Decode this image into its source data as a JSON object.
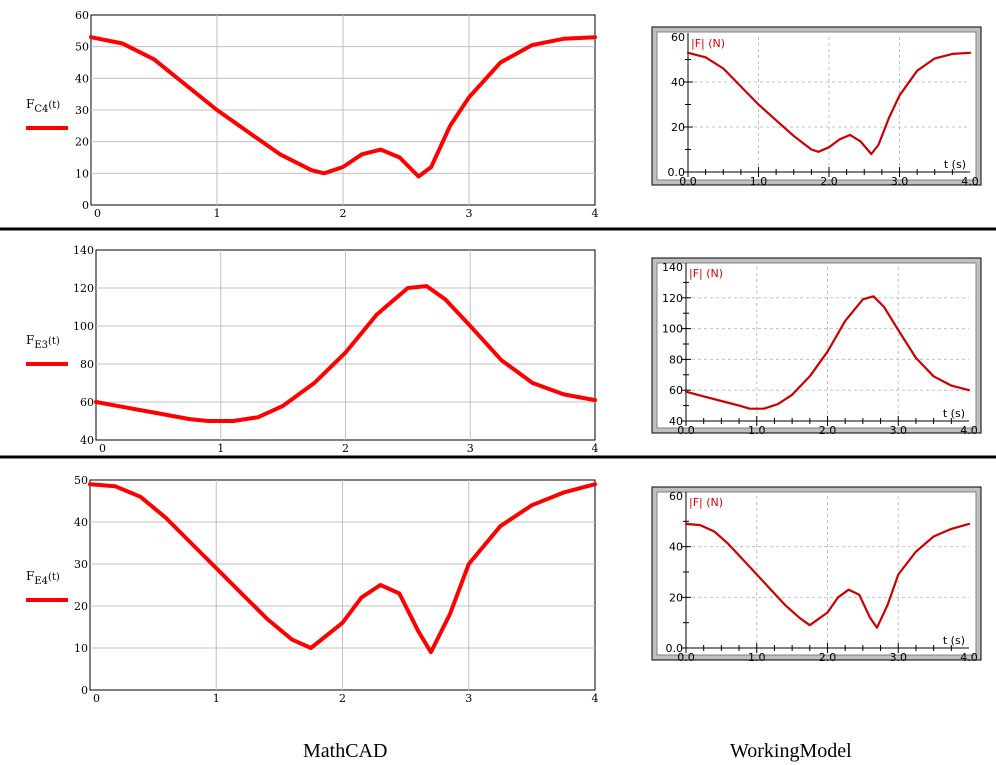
{
  "colors": {
    "curve": "#ff0000",
    "wm_curve": "#cc0000",
    "grid": "#c0c0c0",
    "wm_frame": "#c0c0c0",
    "wm_label": "#d80000"
  },
  "captions": {
    "left": "MathCAD",
    "right": "WorkingModel"
  },
  "chart_data": [
    {
      "type": "line",
      "panel": "MathCAD",
      "legend_label": "F",
      "legend_sub": "C4",
      "legend_arg": "(t)",
      "xlim": [
        0,
        4
      ],
      "ylim": [
        0,
        60
      ],
      "xticks": [
        "0",
        "1",
        "2",
        "3",
        "4"
      ],
      "yticks": [
        "0",
        "10",
        "20",
        "30",
        "40",
        "50",
        "60"
      ],
      "series": [
        {
          "x": [
            0,
            0.25,
            0.5,
            0.75,
            1.0,
            1.25,
            1.5,
            1.75,
            1.85,
            2.0,
            2.15,
            2.3,
            2.45,
            2.6,
            2.7,
            2.85,
            3.0,
            3.25,
            3.5,
            3.75,
            4.0
          ],
          "y": [
            53,
            51,
            46,
            38,
            30,
            23,
            16,
            11,
            10,
            12,
            16,
            17.5,
            15,
            9,
            12,
            25,
            34,
            45,
            50.5,
            52.5,
            53
          ]
        }
      ]
    },
    {
      "type": "line",
      "panel": "WorkingModel",
      "inset_label": "|F| (N)",
      "x_label": "t (s)",
      "xlim": [
        0,
        4
      ],
      "ylim": [
        0,
        60
      ],
      "xticks": [
        "0.0",
        "1.0",
        "2.0",
        "3.0",
        "4.0"
      ],
      "yticks": [
        "0.0",
        "20",
        "40",
        "60"
      ],
      "series": [
        {
          "x": [
            0,
            0.25,
            0.5,
            0.75,
            1.0,
            1.25,
            1.5,
            1.75,
            1.85,
            2.0,
            2.15,
            2.3,
            2.45,
            2.6,
            2.7,
            2.85,
            3.0,
            3.25,
            3.5,
            3.75,
            4.0
          ],
          "y": [
            53,
            51,
            46,
            38,
            30,
            23,
            16,
            10,
            9,
            11,
            14.5,
            16.5,
            13.5,
            8,
            12,
            24,
            34,
            45,
            50.5,
            52.5,
            53
          ]
        }
      ]
    },
    {
      "type": "line",
      "panel": "MathCAD",
      "legend_label": "F",
      "legend_sub": "E3",
      "legend_arg": "(t)",
      "xlim": [
        0,
        4
      ],
      "ylim": [
        40,
        140
      ],
      "xticks": [
        "0",
        "1",
        "2",
        "3",
        "4"
      ],
      "yticks": [
        "40",
        "60",
        "80",
        "100",
        "120",
        "140"
      ],
      "series": [
        {
          "x": [
            0,
            0.25,
            0.5,
            0.75,
            0.9,
            1.1,
            1.3,
            1.5,
            1.75,
            2.0,
            2.25,
            2.5,
            2.65,
            2.8,
            3.0,
            3.25,
            3.5,
            3.75,
            4.0
          ],
          "y": [
            60,
            57,
            54,
            51,
            50,
            50,
            52,
            58,
            70,
            86,
            106,
            120,
            121,
            114,
            100,
            82,
            70,
            64,
            61
          ]
        }
      ]
    },
    {
      "type": "line",
      "panel": "WorkingModel",
      "inset_label": "|F| (N)",
      "x_label": "t (s)",
      "xlim": [
        0,
        4
      ],
      "ylim": [
        40,
        140
      ],
      "xticks": [
        "0.0",
        "1.0",
        "2.0",
        "3.0",
        "4.0"
      ],
      "yticks": [
        "40",
        "60",
        "80",
        "100",
        "120",
        "140"
      ],
      "series": [
        {
          "x": [
            0,
            0.25,
            0.5,
            0.75,
            0.9,
            1.1,
            1.3,
            1.5,
            1.75,
            2.0,
            2.25,
            2.5,
            2.65,
            2.8,
            3.0,
            3.25,
            3.5,
            3.75,
            4.0
          ],
          "y": [
            59,
            56,
            53,
            50,
            48,
            48,
            51,
            57,
            69,
            85,
            105,
            119,
            121,
            114,
            99,
            81,
            69,
            63,
            60
          ]
        }
      ]
    },
    {
      "type": "line",
      "panel": "MathCAD",
      "legend_label": "F",
      "legend_sub": "E4",
      "legend_arg": "(t)",
      "xlim": [
        0,
        4
      ],
      "ylim": [
        0,
        50
      ],
      "xticks": [
        "0",
        "1",
        "2",
        "3",
        "4"
      ],
      "yticks": [
        "0",
        "10",
        "20",
        "30",
        "40",
        "50"
      ],
      "series": [
        {
          "x": [
            0,
            0.2,
            0.4,
            0.6,
            0.8,
            1.0,
            1.2,
            1.4,
            1.6,
            1.75,
            2.0,
            2.15,
            2.3,
            2.45,
            2.6,
            2.7,
            2.85,
            3.0,
            3.25,
            3.5,
            3.75,
            4.0
          ],
          "y": [
            49,
            48.5,
            46,
            41,
            35,
            29,
            23,
            17,
            12,
            10,
            16,
            22,
            25,
            23,
            14,
            9,
            18,
            30,
            39,
            44,
            47,
            49
          ]
        }
      ]
    },
    {
      "type": "line",
      "panel": "WorkingModel",
      "inset_label": "|F| (N)",
      "x_label": "t (s)",
      "xlim": [
        0,
        4
      ],
      "ylim": [
        0,
        60
      ],
      "xticks": [
        "0.0",
        "1.0",
        "2.0",
        "3.0",
        "4.0"
      ],
      "yticks": [
        "0.0",
        "20",
        "40",
        "60"
      ],
      "series": [
        {
          "x": [
            0,
            0.2,
            0.4,
            0.6,
            0.8,
            1.0,
            1.2,
            1.4,
            1.6,
            1.75,
            2.0,
            2.15,
            2.3,
            2.45,
            2.6,
            2.7,
            2.85,
            3.0,
            3.25,
            3.5,
            3.75,
            4.0
          ],
          "y": [
            49,
            48.5,
            46,
            41,
            35,
            29,
            23,
            17,
            12,
            9,
            14,
            20,
            23,
            21,
            12,
            8,
            17,
            29,
            38,
            44,
            47,
            49
          ]
        }
      ]
    }
  ]
}
